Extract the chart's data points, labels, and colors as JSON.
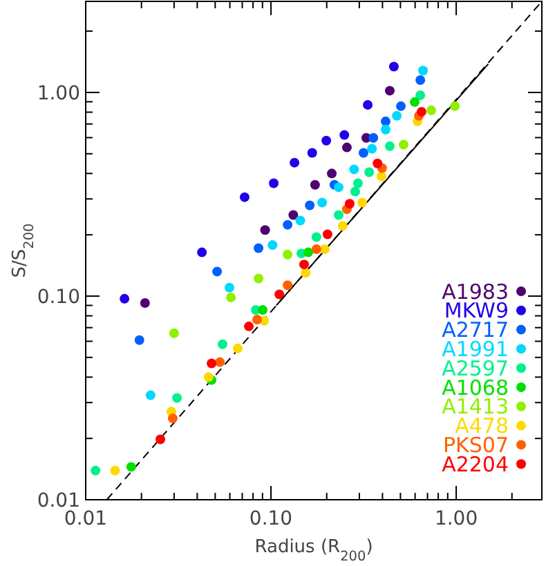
{
  "chart_data": {
    "type": "scatter",
    "xlabel": "Radius (R$_{200}$)",
    "ylabel": "S/S$_{200}$",
    "log": "xy",
    "marker": "circle",
    "legend": "bottom right",
    "grid": false,
    "xlim": [
      0.01,
      2.9
    ],
    "ylim": [
      0.01,
      2.8
    ],
    "xticks": [
      {
        "value": 0.01,
        "label": "0.01"
      },
      {
        "value": 0.02,
        "label": null
      },
      {
        "value": 0.03,
        "label": null
      },
      {
        "value": 0.04,
        "label": null
      },
      {
        "value": 0.05,
        "label": null
      },
      {
        "value": 0.06,
        "label": null
      },
      {
        "value": 0.07,
        "label": null
      },
      {
        "value": 0.08,
        "label": null
      },
      {
        "value": 0.09,
        "label": null
      },
      {
        "value": 0.1,
        "label": "0.10"
      },
      {
        "value": 0.2,
        "label": null
      },
      {
        "value": 0.3,
        "label": null
      },
      {
        "value": 0.4,
        "label": null
      },
      {
        "value": 0.5,
        "label": null
      },
      {
        "value": 0.6,
        "label": null
      },
      {
        "value": 0.7,
        "label": null
      },
      {
        "value": 0.8,
        "label": null
      },
      {
        "value": 0.9,
        "label": null
      },
      {
        "value": 1,
        "label": "1.00"
      },
      {
        "value": 2,
        "label": null
      }
    ],
    "yticks": [
      {
        "value": 0.01,
        "label": "0.01"
      },
      {
        "value": 0.02,
        "label": null
      },
      {
        "value": 0.03,
        "label": null
      },
      {
        "value": 0.04,
        "label": null
      },
      {
        "value": 0.05,
        "label": null
      },
      {
        "value": 0.06,
        "label": null
      },
      {
        "value": 0.07,
        "label": null
      },
      {
        "value": 0.08,
        "label": null
      },
      {
        "value": 0.09,
        "label": null
      },
      {
        "value": 0.1,
        "label": "0.10"
      },
      {
        "value": 0.2,
        "label": null
      },
      {
        "value": 0.3,
        "label": null
      },
      {
        "value": 0.4,
        "label": null
      },
      {
        "value": 0.5,
        "label": null
      },
      {
        "value": 0.6,
        "label": null
      },
      {
        "value": 0.7,
        "label": null
      },
      {
        "value": 0.8,
        "label": null
      },
      {
        "value": 0.9,
        "label": null
      },
      {
        "value": 1,
        "label": "1.00"
      },
      {
        "value": 2,
        "label": null
      }
    ],
    "series": [
      {
        "type": "line",
        "color": "#000000",
        "line_style": "dashed",
        "marker": "none",
        "x": [
          0.013,
          2.9
        ],
        "values": [
          0.01,
          2.8
        ]
      },
      {
        "type": "line",
        "color": "#000000",
        "line_style": "solid",
        "marker": "none",
        "x": [
          0.107,
          1.49
        ],
        "values": [
          0.09,
          1.38
        ]
      },
      {
        "name": "A1983",
        "color": "#500070",
        "x": [
          0.0209,
          0.093,
          0.132,
          0.173,
          0.213,
          0.257,
          0.327,
          0.438
        ],
        "values": [
          0.0925,
          0.211,
          0.25,
          0.352,
          0.4,
          0.537,
          0.598,
          1.02
        ]
      },
      {
        "name": "MKW9",
        "color": "#2000e8",
        "x": [
          0.0162,
          0.0424,
          0.0721,
          0.1035,
          0.134,
          0.167,
          0.199,
          0.249,
          0.333,
          0.461
        ],
        "values": [
          0.097,
          0.164,
          0.306,
          0.358,
          0.452,
          0.505,
          0.58,
          0.618,
          0.869,
          1.34
        ]
      },
      {
        "name": "A2717",
        "color": "#0060ff",
        "x": [
          0.0195,
          0.0512,
          0.0857,
          0.123,
          0.162,
          0.22,
          0.316,
          0.357,
          0.416,
          0.503,
          0.64
        ],
        "values": [
          0.0608,
          0.132,
          0.172,
          0.224,
          0.279,
          0.352,
          0.505,
          0.598,
          0.721,
          0.856,
          1.15
        ]
      },
      {
        "name": "A1991",
        "color": "#00d8ff",
        "x": [
          0.0224,
          0.0597,
          0.102,
          0.144,
          0.189,
          0.232,
          0.281,
          0.351,
          0.416,
          0.478,
          0.662
        ],
        "values": [
          0.0326,
          0.11,
          0.178,
          0.235,
          0.288,
          0.342,
          0.419,
          0.529,
          0.657,
          0.768,
          1.28
        ]
      },
      {
        "name": "A2597",
        "color": "#00f090",
        "x": [
          0.0113,
          0.0311,
          0.0548,
          0.0828,
          0.146,
          0.176,
          0.232,
          0.285,
          0.295,
          0.339,
          0.438,
          0.64
        ],
        "values": [
          0.0139,
          0.0316,
          0.058,
          0.0855,
          0.162,
          0.195,
          0.25,
          0.326,
          0.358,
          0.406,
          0.545,
          0.969
        ]
      },
      {
        "name": "A1068",
        "color": "#00e000",
        "x": [
          0.0176,
          0.0478,
          0.0902,
          0.159,
          0.597
        ],
        "values": [
          0.0145,
          0.0387,
          0.0855,
          0.164,
          0.897
        ]
      },
      {
        "name": "A1413",
        "color": "#90f000",
        "x": [
          0.03,
          0.0608,
          0.0857,
          0.123,
          0.52,
          0.734,
          0.984
        ],
        "values": [
          0.0657,
          0.0985,
          0.122,
          0.16,
          0.554,
          0.817,
          0.856
        ]
      },
      {
        "name": "A478",
        "color": "#ffd800",
        "x": [
          0.0144,
          0.029,
          0.0461,
          0.0662,
          0.0918,
          0.154,
          0.195,
          0.244,
          0.311,
          0.395,
          0.618
        ],
        "values": [
          0.0139,
          0.0271,
          0.04,
          0.0553,
          0.0756,
          0.13,
          0.17,
          0.221,
          0.288,
          0.387,
          0.721
        ]
      },
      {
        "name": "PKS07",
        "color": "#ff6000",
        "x": [
          0.0295,
          0.053,
          0.0842,
          0.123,
          0.176,
          0.257,
          0.398,
          0.629
        ],
        "values": [
          0.0251,
          0.0474,
          0.0767,
          0.113,
          0.17,
          0.267,
          0.425,
          0.768
        ]
      },
      {
        "name": "A2204",
        "color": "#ff0000",
        "x": [
          0.0253,
          0.0478,
          0.076,
          0.111,
          0.151,
          0.202,
          0.266,
          0.376,
          0.65
        ],
        "values": [
          0.0198,
          0.0467,
          0.071,
          0.102,
          0.143,
          0.201,
          0.284,
          0.448,
          0.804
        ]
      }
    ]
  }
}
